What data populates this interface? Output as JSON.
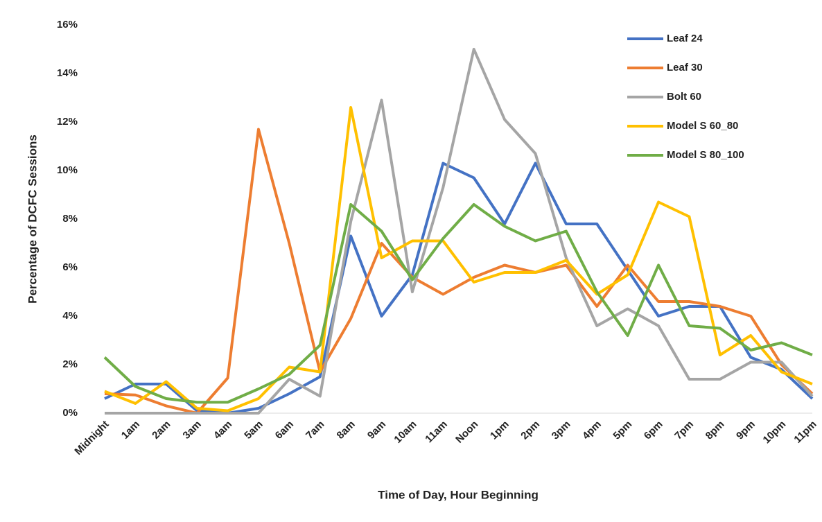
{
  "chart_data": {
    "type": "line",
    "x_label": "Time of Day, Hour Beginning",
    "y_label": "Percentage of DCFC  Sessions",
    "categories": [
      "Midnight",
      "1am",
      "2am",
      "3am",
      "4am",
      "5am",
      "6am",
      "7am",
      "8am",
      "9am",
      "10am",
      "11am",
      "Noon",
      "1pm",
      "2pm",
      "3pm",
      "4pm",
      "5pm",
      "6pm",
      "7pm",
      "8pm",
      "9pm",
      "10pm",
      "11pm"
    ],
    "series": [
      {
        "name": "Leaf 24",
        "color": "#4472c4",
        "values": [
          0.6,
          1.2,
          1.2,
          0.1,
          0,
          0.2,
          0.8,
          1.5,
          7.3,
          4.0,
          5.7,
          10.3,
          9.7,
          7.8,
          10.3,
          7.8,
          7.8,
          5.9,
          4.0,
          4.4,
          4.4,
          2.3,
          1.8,
          0.6
        ]
      },
      {
        "name": "Leaf 30",
        "color": "#ed7d31",
        "values": [
          0.8,
          0.75,
          0.3,
          0,
          1.45,
          11.7,
          7.0,
          1.7,
          3.9,
          7.0,
          5.6,
          4.9,
          5.6,
          6.1,
          5.8,
          6.1,
          4.4,
          6.1,
          4.6,
          4.6,
          4.4,
          4.0,
          2.0,
          0.8
        ]
      },
      {
        "name": "Bolt 60",
        "color": "#a5a5a5",
        "values": [
          0,
          0,
          0,
          0,
          0,
          0,
          1.4,
          0.7,
          7.9,
          12.9,
          5.0,
          9.3,
          15.0,
          12.1,
          10.7,
          6.4,
          3.6,
          4.3,
          3.6,
          1.4,
          1.4,
          2.1,
          2.1,
          0.7
        ]
      },
      {
        "name": "Model S 60_80",
        "color": "#ffc000",
        "values": [
          0.9,
          0.4,
          1.3,
          0.2,
          0.1,
          0.6,
          1.9,
          1.7,
          12.6,
          6.4,
          7.1,
          7.1,
          5.4,
          5.8,
          5.8,
          6.3,
          4.9,
          5.7,
          8.7,
          8.1,
          2.4,
          3.2,
          1.7,
          1.2
        ]
      },
      {
        "name": "Model S 80_100",
        "color": "#70ad47",
        "values": [
          2.3,
          1.1,
          0.6,
          0.45,
          0.45,
          1.0,
          1.6,
          2.8,
          8.6,
          7.5,
          5.5,
          7.2,
          8.6,
          7.7,
          7.1,
          7.5,
          5.0,
          3.2,
          6.1,
          3.6,
          3.5,
          2.6,
          2.9,
          2.4
        ]
      }
    ],
    "ylim": [
      0,
      16
    ],
    "yticks": [
      {
        "value": 0,
        "label": "0%"
      },
      {
        "value": 2,
        "label": "2%"
      },
      {
        "value": 4,
        "label": "4%"
      },
      {
        "value": 6,
        "label": "6%"
      },
      {
        "value": 8,
        "label": "8%"
      },
      {
        "value": 10,
        "label": "10%"
      },
      {
        "value": 12,
        "label": "12%"
      },
      {
        "value": 14,
        "label": "14%"
      },
      {
        "value": 16,
        "label": "16%"
      }
    ],
    "grid": false,
    "legend": "upper right"
  }
}
